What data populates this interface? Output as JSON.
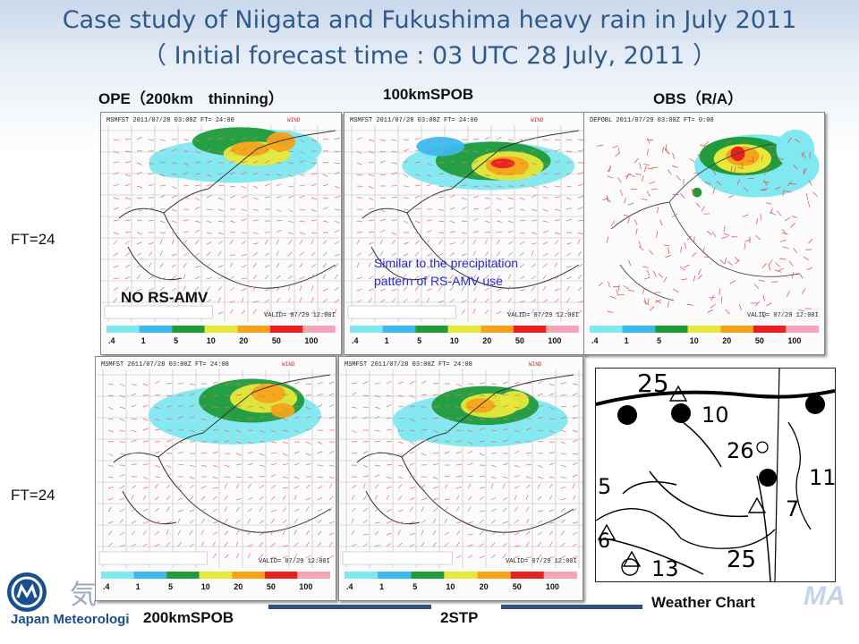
{
  "slide": {
    "title_line1": "Case study of Niigata and Fukushima heavy rain in July 2011",
    "title_line2": "（ Initial forecast time : 03 UTC 28 July, 2011 ）"
  },
  "column_headers": {
    "ope": "OPE（200km　thinning）",
    "spob100": "100kmSPOB",
    "obs": "OBS（R/A）"
  },
  "row_labels": {
    "row1": "FT=24",
    "row2": "FT=24"
  },
  "panels": {
    "header_text": "MSMFST 2011/07/28 03:00Z FT= 24:00",
    "obs_header_text": "DEPOBL 2011/07/29 03:00Z FT= 0:00",
    "valid_text": "VALID= 07/29 12:00I",
    "no_rs_amv": "NO RS-AMV",
    "similar_note": "Similar to the precipitation pattern of RS-AMV use"
  },
  "color_scale": {
    "labels": [
      ".4",
      "1",
      "5",
      "10",
      "20",
      "50",
      "100"
    ],
    "colors": [
      "#7fe8f0",
      "#3ab9ef",
      "#1f9b3a",
      "#e8e83a",
      "#f7a31a",
      "#e82020",
      "#f4a6b8"
    ]
  },
  "weather_chart": {
    "numbers": [
      "25",
      "10",
      "26",
      "11",
      "7",
      "5",
      "13",
      "25",
      "6"
    ]
  },
  "bottom_labels": {
    "spob200": "200kmSPOB",
    "stp2": "2STP",
    "weather_chart": "Weather Chart"
  },
  "logo": {
    "text": "Japan Meteorologi"
  }
}
